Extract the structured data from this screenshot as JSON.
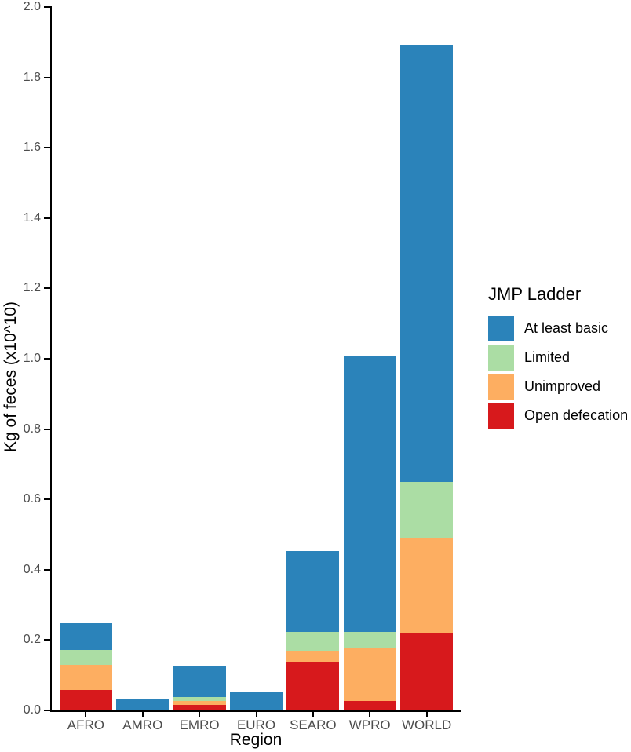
{
  "chart_data": {
    "type": "bar",
    "stacked": true,
    "title": "",
    "xlabel": "Region",
    "ylabel": "Kg of feces (x10^10)",
    "categories": [
      "AFRO",
      "AMRO",
      "EMRO",
      "EURO",
      "SEARO",
      "WPRO",
      "WORLD"
    ],
    "series": [
      {
        "name": "Open defecation",
        "color": "#D7191C",
        "values": [
          0.059,
          0,
          0.016,
          0,
          0.138,
          0.027,
          0.219
        ]
      },
      {
        "name": "Unimproved",
        "color": "#FDAE61",
        "values": [
          0.07,
          0,
          0.012,
          0,
          0.032,
          0.152,
          0.272
        ]
      },
      {
        "name": "Limited",
        "color": "#ABDDA4",
        "values": [
          0.042,
          0,
          0.01,
          0,
          0.054,
          0.045,
          0.159
        ]
      },
      {
        "name": "At least basic",
        "color": "#2B83BA",
        "values": [
          0.076,
          0.032,
          0.089,
          0.051,
          0.23,
          0.785,
          1.243
        ]
      }
    ],
    "ylim": [
      0.0,
      2.0
    ],
    "ytick_step": 0.2,
    "yticks": [
      "0.0",
      "0.2",
      "0.4",
      "0.6",
      "0.8",
      "1.0",
      "1.2",
      "1.4",
      "1.6",
      "1.8",
      "2.0"
    ],
    "grid": false,
    "legend": {
      "title": "JMP Ladder",
      "position": "right",
      "entries": [
        {
          "label": "At least basic",
          "color": "#2B83BA"
        },
        {
          "label": "Limited",
          "color": "#ABDDA4"
        },
        {
          "label": "Unimproved",
          "color": "#FDAE61"
        },
        {
          "label": "Open defecation",
          "color": "#D7191C"
        }
      ]
    }
  },
  "colors": {
    "axis": "#000000",
    "tick_label": "#4D4D4D",
    "background": "#FFFFFF"
  }
}
